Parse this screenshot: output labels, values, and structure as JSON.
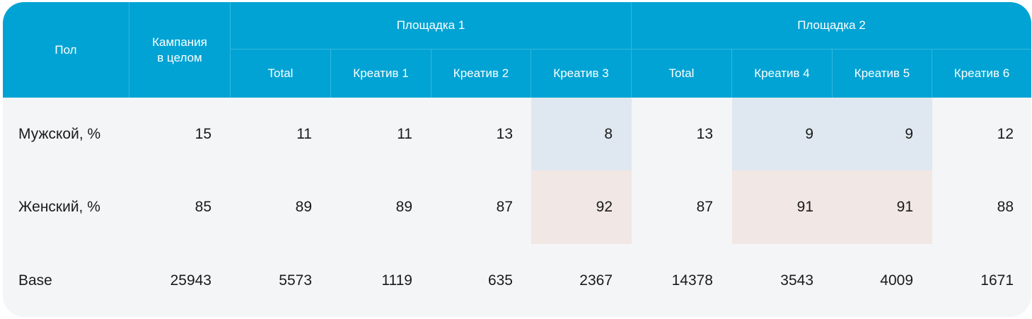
{
  "header": {
    "col_gender": "Пол",
    "col_campaign": "Кампания\nв целом",
    "platform1": "Площадка 1",
    "platform2": "Площадка 2",
    "subcols": [
      "Total",
      "Креатив 1",
      "Креатив 2",
      "Креатив 3",
      "Total",
      "Креатив 4",
      "Креатив 5",
      "Креатив 6"
    ]
  },
  "rows": [
    {
      "label": "Мужской, %",
      "values": [
        "15",
        "11",
        "11",
        "13",
        "8",
        "13",
        "9",
        "9",
        "12"
      ]
    },
    {
      "label": "Женский, %",
      "values": [
        "85",
        "89",
        "89",
        "87",
        "92",
        "87",
        "91",
        "91",
        "88"
      ]
    },
    {
      "label": "Base",
      "values": [
        "25943",
        "5573",
        "1119",
        "635",
        "2367",
        "14378",
        "3543",
        "4009",
        "1671"
      ]
    }
  ],
  "colors": {
    "header_bg": "#00a3d4",
    "body_bg": "#f4f5f7",
    "highlight_male": "#dfe8f0",
    "highlight_female": "#f1e7e4"
  }
}
